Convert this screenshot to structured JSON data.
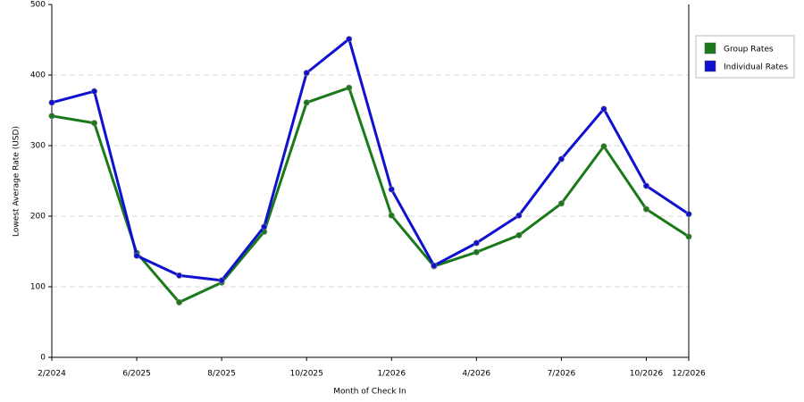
{
  "chart_data": {
    "type": "line",
    "x_label": "Month of Check In",
    "y_label": "Lowest Average Rate (USD)",
    "categories": [
      "2/2024",
      null,
      "6/2025",
      null,
      "8/2025",
      null,
      "10/2025",
      null,
      "1/2026",
      null,
      "4/2026",
      null,
      "7/2026",
      null,
      "10/2026",
      "12/2026"
    ],
    "series": [
      {
        "name": "Group Rates",
        "color": "#1a7a1a",
        "values": [
          342,
          332,
          148,
          78,
          106,
          178,
          361,
          382,
          201,
          129,
          149,
          173,
          218,
          299,
          210,
          171
        ]
      },
      {
        "name": "Individual Rates",
        "color": "#1010d0",
        "values": [
          361,
          377,
          144,
          116,
          109,
          185,
          403,
          451,
          238,
          130,
          162,
          201,
          281,
          352,
          243,
          203
        ]
      }
    ],
    "ylim": [
      0,
      500
    ],
    "yticks": [
      0,
      100,
      200,
      300,
      400,
      500
    ],
    "grid": true,
    "legend": "right"
  }
}
